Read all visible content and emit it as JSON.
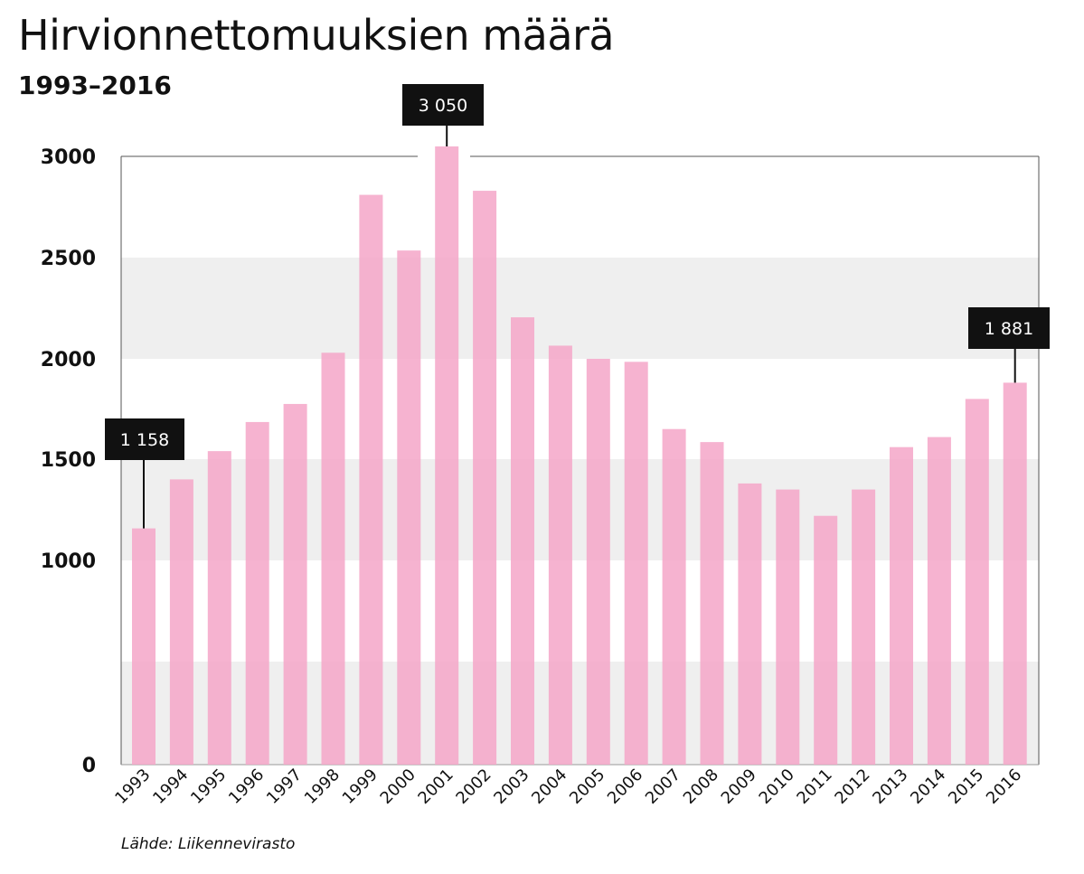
{
  "chart_data": {
    "type": "bar",
    "title": "Hirvionnettomuuksien määrä",
    "subtitle": "1993–2016",
    "source": "Lähde: Liikennevirasto",
    "categories": [
      "1993",
      "1994",
      "1995",
      "1996",
      "1997",
      "1998",
      "1999",
      "2000",
      "2001",
      "2002",
      "2003",
      "2004",
      "2005",
      "2006",
      "2007",
      "2008",
      "2009",
      "2010",
      "2011",
      "2012",
      "2013",
      "2014",
      "2015",
      "2016"
    ],
    "values": [
      1158,
      1400,
      1540,
      1685,
      1775,
      2030,
      2810,
      2535,
      3050,
      2830,
      2205,
      2065,
      2000,
      1985,
      1650,
      1585,
      1380,
      1350,
      1220,
      1350,
      1560,
      1610,
      1800,
      1881
    ],
    "ylim": [
      0,
      3000
    ],
    "yticks": [
      0,
      1000,
      1500,
      2000,
      2500,
      3000
    ],
    "ytick_labels": [
      "0",
      "1000",
      "1500",
      "2000",
      "2500",
      "3000"
    ],
    "xlabel": "",
    "ylabel": "",
    "bar_color": "#f4a6c8",
    "band_color": "#efefef",
    "annotations": [
      {
        "category": "1993",
        "label": "1 158"
      },
      {
        "category": "2001",
        "label": "3 050"
      },
      {
        "category": "2016",
        "label": "1 881"
      }
    ]
  }
}
